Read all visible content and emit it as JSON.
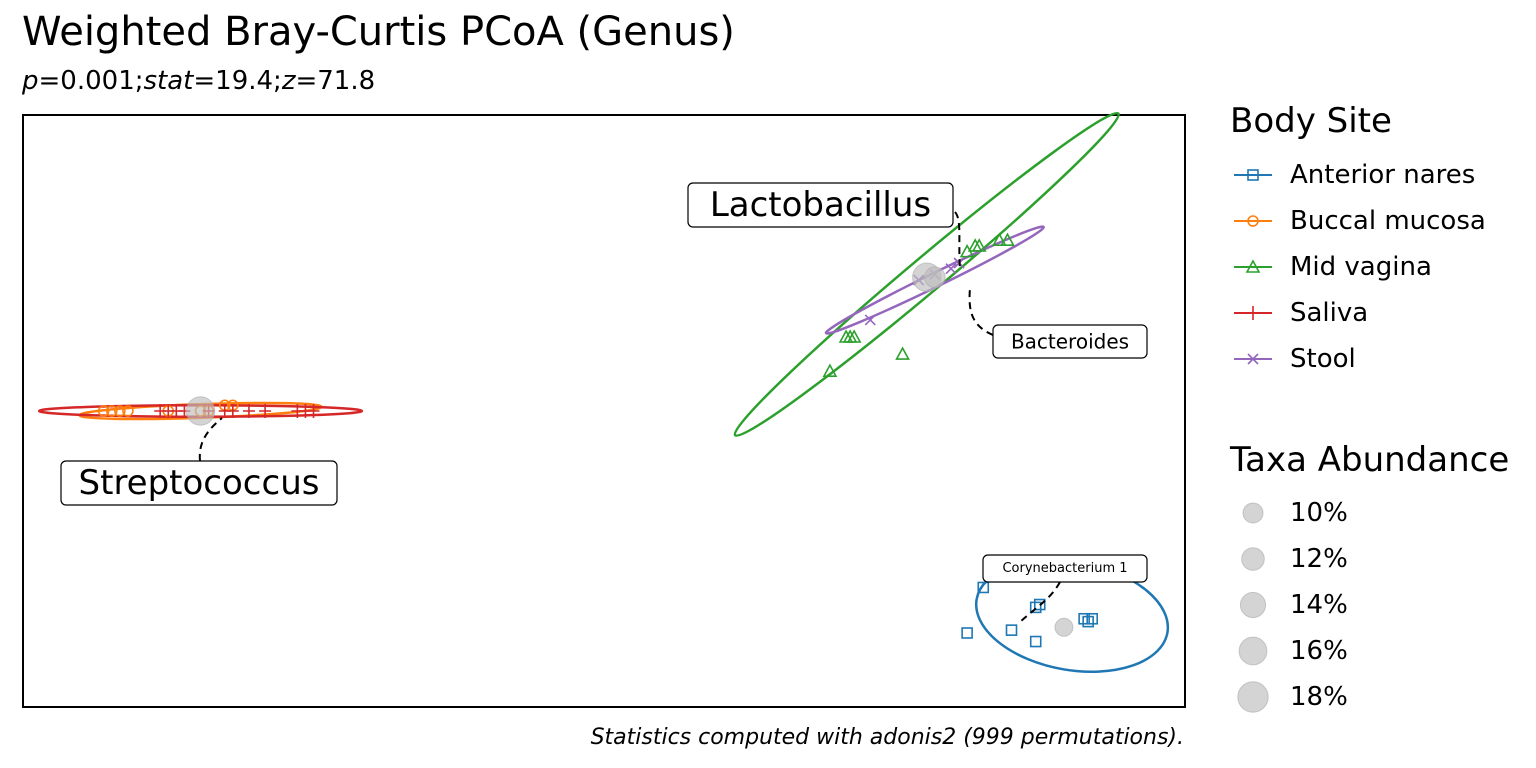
{
  "title": "Weighted Bray-Curtis PCoA (Genus)",
  "subtitle": {
    "p_label": "p",
    "p_value": "=0.001;",
    "stat_label": "stat",
    "stat_value": "=19.4;",
    "z_label": "z",
    "z_value": "=71.8"
  },
  "caption": "Statistics computed with adonis2 (999 permutations).",
  "chart_data": {
    "type": "scatter",
    "axes_shown": false,
    "grid": false,
    "x_range": [
      -0.72,
      0.72
    ],
    "y_range": [
      -0.52,
      0.52
    ],
    "legend_body_site": {
      "title": "Body Site",
      "placement": "right",
      "entries": [
        {
          "name": "Anterior nares",
          "color": "#1f77b4",
          "marker": "square"
        },
        {
          "name": "Buccal mucosa",
          "color": "#ff7f0e",
          "marker": "circle"
        },
        {
          "name": "Mid vagina",
          "color": "#2ca02c",
          "marker": "triangle"
        },
        {
          "name": "Saliva",
          "color": "#d62728",
          "marker": "plus"
        },
        {
          "name": "Stool",
          "color": "#9467bd",
          "marker": "x"
        }
      ]
    },
    "legend_abundance": {
      "title": "Taxa Abundance",
      "placement": "right",
      "entries": [
        {
          "label": "10%",
          "value": 10
        },
        {
          "label": "12%",
          "value": 12
        },
        {
          "label": "14%",
          "value": 14
        },
        {
          "label": "16%",
          "value": 16
        },
        {
          "label": "18%",
          "value": 18
        }
      ]
    },
    "series": [
      {
        "name": "Anterior nares",
        "ellipse": {
          "cx": 0.58,
          "cy": -0.36,
          "rx": 0.12,
          "ry": 0.095,
          "angle": -10
        },
        "points": [
          [
            0.47,
            -0.31
          ],
          [
            0.51,
            -0.28
          ],
          [
            0.535,
            -0.345
          ],
          [
            0.54,
            -0.34
          ],
          [
            0.595,
            -0.365
          ],
          [
            0.605,
            -0.365
          ],
          [
            0.6,
            -0.37
          ],
          [
            0.45,
            -0.39
          ],
          [
            0.505,
            -0.385
          ],
          [
            0.535,
            -0.405
          ]
        ]
      },
      {
        "name": "Buccal mucosa",
        "ellipse": {
          "cx": -0.5,
          "cy": 0.0,
          "rx": 0.15,
          "ry": 0.012,
          "angle": 2
        },
        "points": [
          [
            -0.62,
            0.0
          ],
          [
            -0.61,
            0.0
          ],
          [
            -0.6,
            0.0
          ],
          [
            -0.59,
            0.0
          ],
          [
            -0.54,
            0.0
          ],
          [
            -0.5,
            0.0
          ],
          [
            -0.49,
            0.0
          ],
          [
            -0.47,
            0.01
          ],
          [
            -0.46,
            0.01
          ]
        ]
      },
      {
        "name": "Mid vagina",
        "ellipse": {
          "cx": 0.4,
          "cy": 0.24,
          "rx": 0.31,
          "ry": 0.03,
          "angle": 40
        },
        "points": [
          [
            0.28,
            0.07
          ],
          [
            0.3,
            0.13
          ],
          [
            0.305,
            0.13
          ],
          [
            0.31,
            0.13
          ],
          [
            0.45,
            0.28
          ],
          [
            0.46,
            0.29
          ],
          [
            0.465,
            0.29
          ],
          [
            0.49,
            0.3
          ],
          [
            0.5,
            0.3
          ],
          [
            0.37,
            0.1
          ]
        ]
      },
      {
        "name": "Saliva",
        "ellipse": {
          "cx": -0.5,
          "cy": 0.0,
          "rx": 0.2,
          "ry": 0.01,
          "angle": 0
        },
        "points": [
          [
            -0.55,
            0.0
          ],
          [
            -0.54,
            0.0
          ],
          [
            -0.53,
            0.0
          ],
          [
            -0.52,
            0.0
          ],
          [
            -0.49,
            0.0
          ],
          [
            -0.47,
            0.0
          ],
          [
            -0.46,
            0.0
          ],
          [
            -0.44,
            0.0
          ],
          [
            -0.42,
            0.0
          ],
          [
            -0.38,
            0.0
          ],
          [
            -0.37,
            0.0
          ],
          [
            -0.36,
            0.0
          ]
        ]
      },
      {
        "name": "Stool",
        "ellipse": {
          "cx": 0.41,
          "cy": 0.23,
          "rx": 0.15,
          "ry": 0.012,
          "angle": 26
        },
        "points": [
          [
            0.33,
            0.16
          ],
          [
            0.39,
            0.23
          ],
          [
            0.41,
            0.24
          ],
          [
            0.43,
            0.25
          ],
          [
            0.44,
            0.26
          ]
        ]
      }
    ],
    "taxa": [
      {
        "label": "Lactobacillus",
        "x": 0.4,
        "y": 0.235,
        "abundance": 18
      },
      {
        "label": "Bacteroides",
        "x": 0.41,
        "y": 0.235,
        "abundance": 12
      },
      {
        "label": "Streptococcus",
        "x": -0.5,
        "y": 0.0,
        "abundance": 18
      },
      {
        "label": "Corynebacterium 1",
        "x": 0.57,
        "y": -0.38,
        "abundance": 10
      }
    ]
  }
}
